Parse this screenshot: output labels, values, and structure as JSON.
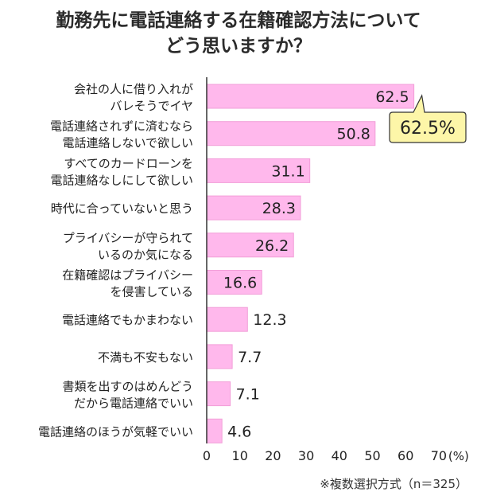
{
  "title_lines": [
    "勤務先に電話連絡する在籍確認方法について",
    "どう思いますか？"
  ],
  "footnote": "※複数選択方式（n＝325）",
  "callout": {
    "text": "62.5%",
    "fill": "#fdf6a8",
    "stroke": "#333333"
  },
  "chart_data": {
    "type": "bar",
    "orientation": "horizontal",
    "title": "勤務先に電話連絡する在籍確認方法についてどう思いますか？",
    "categories": [
      [
        "会社の人に借り入れが",
        "バレそうでイヤ"
      ],
      [
        "電話連絡されずに済むなら",
        "電話連絡しないで欲しい"
      ],
      [
        "すべてのカードローンを",
        "電話連絡なしにして欲しい"
      ],
      [
        "時代に合っていないと思う"
      ],
      [
        "プライバシーが守られて",
        "いるのか気になる"
      ],
      [
        "在籍確認はプライバシー",
        "を侵害している"
      ],
      [
        "電話連絡でもかまわない"
      ],
      [
        "不満も不安もない"
      ],
      [
        "書類を出すのはめんどう",
        "だから電話連絡でいい"
      ],
      [
        "電話連絡のほうが気軽でいい"
      ]
    ],
    "values": [
      62.5,
      50.8,
      31.1,
      28.3,
      26.2,
      16.6,
      12.3,
      7.7,
      7.1,
      4.6
    ],
    "value_labels": [
      "62.5",
      "50.8",
      "31.1",
      "28.3",
      "26.2",
      "16.6",
      "12.3",
      "7.7",
      "7.1",
      "4.6"
    ],
    "xlim": [
      0,
      70
    ],
    "xticks": [
      "0",
      "10",
      "20",
      "30",
      "40",
      "50",
      "60",
      "70"
    ],
    "x_unit": "(%)",
    "bar_color": "#ffb8ec",
    "bar_stroke": "#f29ed8",
    "grid": false
  }
}
